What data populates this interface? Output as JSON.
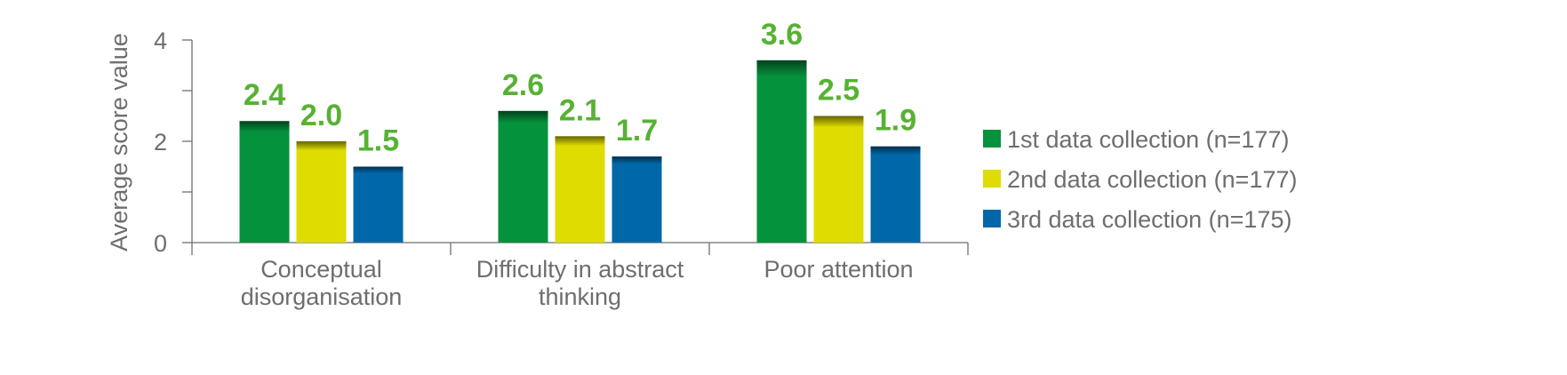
{
  "chart_data": {
    "type": "bar",
    "title": "",
    "xlabel": "",
    "ylabel": "Average score value",
    "ylim": [
      0,
      4
    ],
    "yticks": [
      "0",
      "2",
      "4"
    ],
    "grid": false,
    "legend_position": "right",
    "categories": [
      [
        "Conceptual",
        "disorganisation"
      ],
      [
        "Difficulty in abstract",
        "thinking"
      ],
      [
        "Poor attention"
      ]
    ],
    "series": [
      {
        "name": "1st data collection (n=177)",
        "color": "#05923c",
        "values": [
          2.4,
          2.6,
          3.6
        ],
        "labels": [
          "2.4",
          "2.6",
          "3.6"
        ]
      },
      {
        "name": "2nd data collection (n=177)",
        "color": "#dedc00",
        "values": [
          2.0,
          2.1,
          2.5
        ],
        "labels": [
          "2.0",
          "2.1",
          "2.5"
        ]
      },
      {
        "name": "3rd data collection (n=175)",
        "color": "#0068a9",
        "values": [
          1.5,
          1.7,
          1.9
        ],
        "labels": [
          "1.5",
          "1.7",
          "1.9"
        ]
      }
    ],
    "label_color": "#56b233"
  }
}
